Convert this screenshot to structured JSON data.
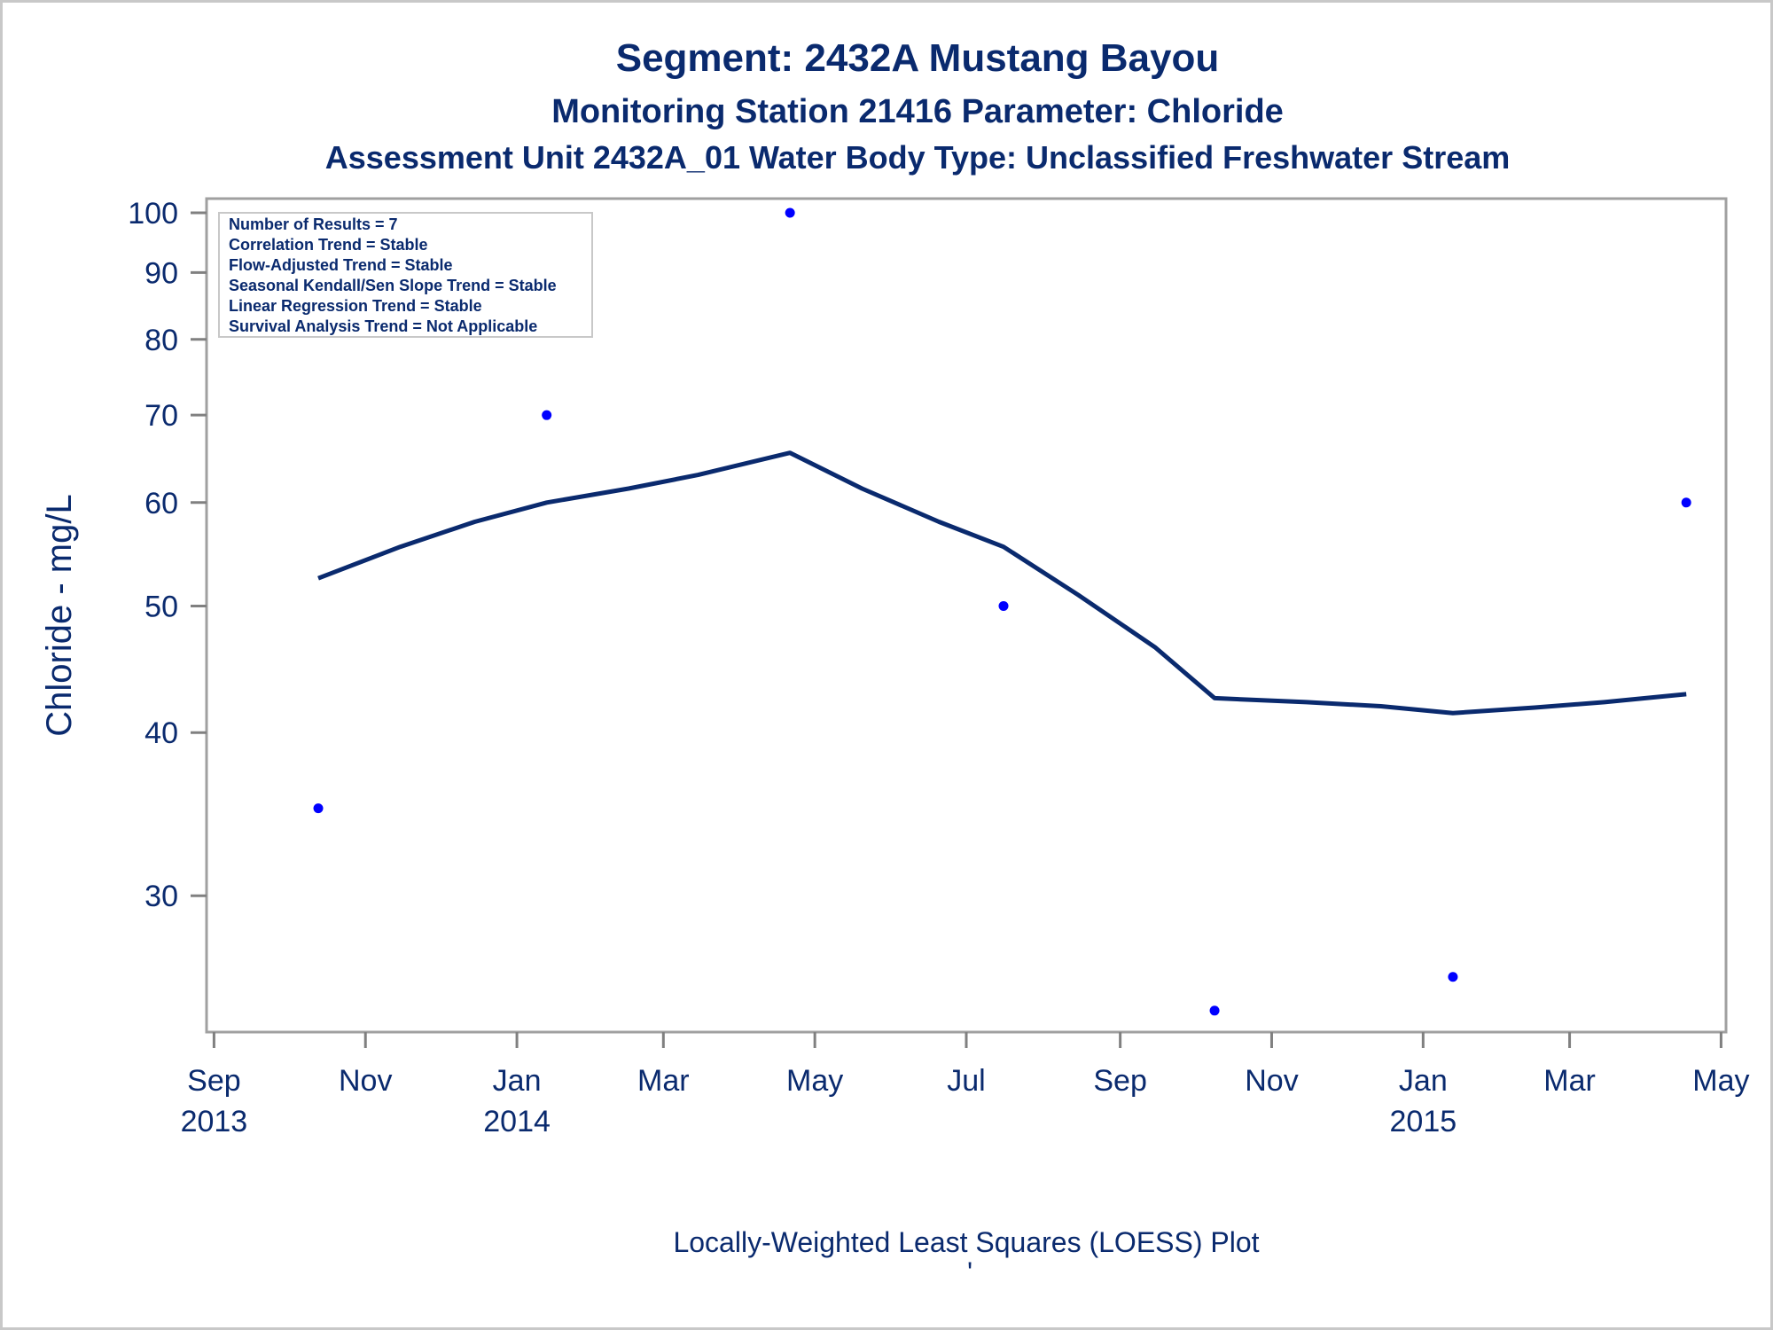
{
  "chart_data": {
    "type": "scatter",
    "title": "Segment: 2432A  Mustang Bayou",
    "subtitle": "Monitoring Station 21416 Parameter: Chloride",
    "subtitle2": "Assessment Unit 2432A_01   Water Body Type: Unclassified Freshwater Stream",
    "ylabel": "Chloride - mg/L",
    "footnote": "Locally-Weighted Least Squares (LOESS) Plot",
    "footnote_mark": "'",
    "y_scale": "log",
    "ylim": [
      24,
      100
    ],
    "xlim": [
      "2013-08-29",
      "2015-05-03"
    ],
    "y_ticks": [
      30,
      40,
      50,
      60,
      70,
      80,
      90,
      100
    ],
    "x_ticks": [
      {
        "date": "2013-09-01",
        "label": "Sep",
        "year": "2013"
      },
      {
        "date": "2013-11-01",
        "label": "Nov",
        "year": ""
      },
      {
        "date": "2014-01-01",
        "label": "Jan",
        "year": "2014"
      },
      {
        "date": "2014-03-01",
        "label": "Mar",
        "year": ""
      },
      {
        "date": "2014-05-01",
        "label": "May",
        "year": ""
      },
      {
        "date": "2014-07-01",
        "label": "Jul",
        "year": ""
      },
      {
        "date": "2014-09-01",
        "label": "Sep",
        "year": ""
      },
      {
        "date": "2014-11-01",
        "label": "Nov",
        "year": ""
      },
      {
        "date": "2015-01-01",
        "label": "Jan",
        "year": "2015"
      },
      {
        "date": "2015-03-01",
        "label": "Mar",
        "year": ""
      },
      {
        "date": "2015-05-01",
        "label": "May",
        "year": ""
      }
    ],
    "series": [
      {
        "kind": "points",
        "color": "#0000ff",
        "points": [
          {
            "x": "2013-10-13",
            "y": 35
          },
          {
            "x": "2014-01-13",
            "y": 70
          },
          {
            "x": "2014-04-21",
            "y": 100
          },
          {
            "x": "2014-07-16",
            "y": 50
          },
          {
            "x": "2014-10-09",
            "y": 24.5
          },
          {
            "x": "2015-01-13",
            "y": 26
          },
          {
            "x": "2015-04-17",
            "y": 60
          }
        ]
      },
      {
        "kind": "loess-line",
        "color": "#0a2a6e",
        "points": [
          {
            "x": "2013-10-13",
            "y": 52.5
          },
          {
            "x": "2013-11-15",
            "y": 55.5
          },
          {
            "x": "2013-12-15",
            "y": 58
          },
          {
            "x": "2014-01-13",
            "y": 60
          },
          {
            "x": "2014-02-15",
            "y": 61.5
          },
          {
            "x": "2014-03-15",
            "y": 63
          },
          {
            "x": "2014-04-21",
            "y": 65.5
          },
          {
            "x": "2014-05-20",
            "y": 61.5
          },
          {
            "x": "2014-06-20",
            "y": 58
          },
          {
            "x": "2014-07-16",
            "y": 55.5
          },
          {
            "x": "2014-08-15",
            "y": 51
          },
          {
            "x": "2014-09-15",
            "y": 46.5
          },
          {
            "x": "2014-10-09",
            "y": 42.5
          },
          {
            "x": "2014-11-15",
            "y": 42.2
          },
          {
            "x": "2014-12-15",
            "y": 41.9
          },
          {
            "x": "2015-01-13",
            "y": 41.4
          },
          {
            "x": "2015-02-15",
            "y": 41.8
          },
          {
            "x": "2015-03-15",
            "y": 42.2
          },
          {
            "x": "2015-04-17",
            "y": 42.8
          }
        ]
      }
    ],
    "inset_lines": [
      "Number of Results = 7",
      "Correlation Trend = Stable",
      "Flow-Adjusted Trend = Stable",
      "Seasonal Kendall/Sen Slope Trend = Stable",
      "Linear Regression Trend = Stable",
      "Survival Analysis Trend = Not Applicable"
    ],
    "inset_position": "top-left",
    "grid": false,
    "legend": "none"
  }
}
